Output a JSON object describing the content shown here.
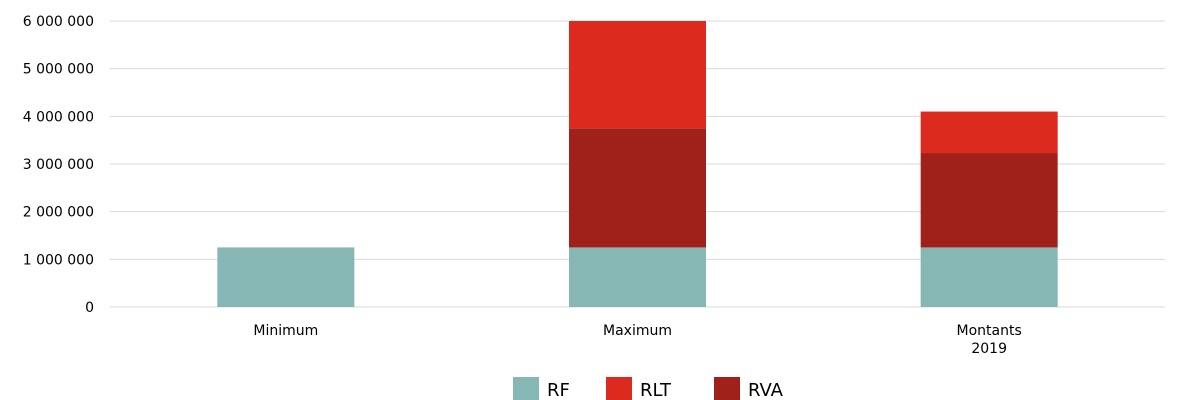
{
  "chart_data": {
    "type": "bar",
    "stacked": true,
    "title": "",
    "xlabel": "",
    "ylabel": "",
    "categories": [
      [
        "Minimum"
      ],
      [
        "Maximum"
      ],
      [
        "Montants",
        "2019"
      ]
    ],
    "series": [
      {
        "name": "RF",
        "color": "#86b7b5",
        "values": [
          1250000,
          1250000,
          1250000
        ]
      },
      {
        "name": "RVA",
        "color": "#a0211a",
        "values": [
          0,
          2500000,
          1980000
        ]
      },
      {
        "name": "RLT",
        "color": "#dc2a1f",
        "values": [
          0,
          2250000,
          870000
        ]
      }
    ],
    "legend_order": [
      "RF",
      "RLT",
      "RVA"
    ],
    "legend_position": "bottom",
    "ylim": [
      0,
      6000000
    ],
    "yticks": [
      0,
      1000000,
      2000000,
      3000000,
      4000000,
      5000000,
      6000000
    ],
    "ytick_labels": [
      "0",
      "1 000 000",
      "2 000 000",
      "3 000 000",
      "4 000 000",
      "5 000 000",
      "6 000 000"
    ],
    "grid": true,
    "gridline_color": "#d9d9d9"
  }
}
